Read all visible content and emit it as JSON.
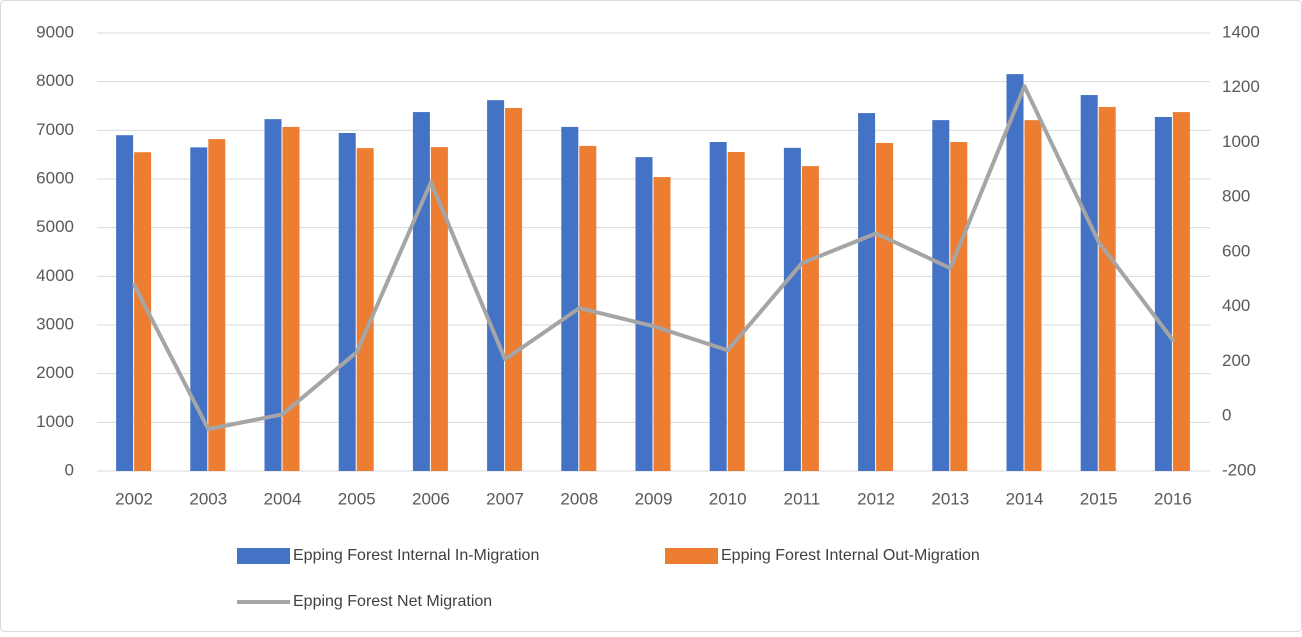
{
  "chart_data": {
    "type": "bar-line",
    "categories": [
      "2002",
      "2003",
      "2004",
      "2005",
      "2006",
      "2007",
      "2008",
      "2009",
      "2010",
      "2011",
      "2012",
      "2013",
      "2014",
      "2015",
      "2016"
    ],
    "series": [
      {
        "name": "Epping Forest Internal In-Migration",
        "type": "bar",
        "color": "#4472c4",
        "values": [
          6900,
          6650,
          7230,
          6945,
          7375,
          7620,
          7070,
          6450,
          6760,
          6640,
          7355,
          7210,
          8155,
          7725,
          7275
        ]
      },
      {
        "name": "Epping Forest Internal Out-Migration",
        "type": "bar",
        "color": "#ed7d31",
        "values": [
          6550,
          6820,
          7070,
          6635,
          6655,
          7460,
          6680,
          6040,
          6555,
          6265,
          6740,
          6760,
          7210,
          7480,
          7375
        ]
      },
      {
        "name": "Epping Forest Net Migration",
        "type": "line",
        "axis": "y2",
        "color": "#a5a5a5",
        "values": [
          480,
          -47,
          7,
          234,
          855,
          208,
          395,
          329,
          241,
          559,
          668,
          541,
          1205,
          636,
          278
        ]
      }
    ],
    "ylim": [
      0,
      9000
    ],
    "yticks": [
      0,
      1000,
      2000,
      3000,
      4000,
      5000,
      6000,
      7000,
      8000,
      9000
    ],
    "y2lim": [
      -200,
      1400
    ],
    "y2ticks": [
      -200,
      0,
      200,
      400,
      600,
      800,
      1000,
      1200,
      1400
    ],
    "grid": true,
    "legend": "bottom"
  }
}
